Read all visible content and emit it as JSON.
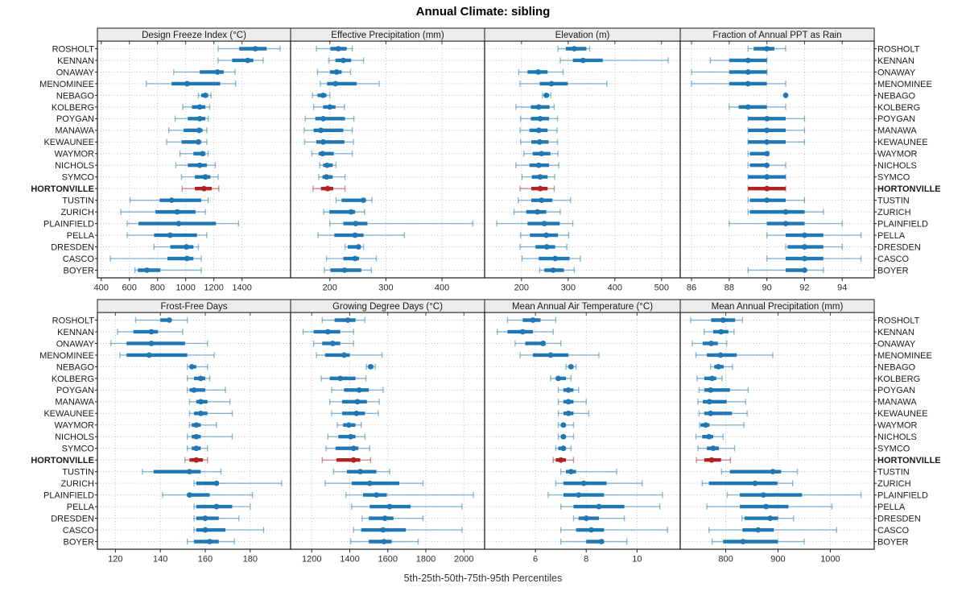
{
  "title": "Annual Climate: sibling",
  "caption": "5th-25th-50th-75th-95th Percentiles",
  "legend_note": "percentiles shown per site: 5th, 25th, 50th, 75th, 95th",
  "sites": [
    "ROSHOLT",
    "KENNAN",
    "ONAWAY",
    "MENOMINEE",
    "NEBAGO",
    "KOLBERG",
    "POYGAN",
    "MANAWA",
    "KEWAUNEE",
    "WAYMOR",
    "NICHOLS",
    "SYMCO",
    "HORTONVILLE",
    "TUSTIN",
    "ZURICH",
    "PLAINFIELD",
    "PELLA",
    "DRESDEN",
    "CASCO",
    "BOYER"
  ],
  "highlight_site": "HORTONVILLE",
  "colors": {
    "series": "#1f77b4",
    "series_light": "rgba(31,119,180,0.5)",
    "highlight": "#b22222",
    "highlight_light": "rgba(178,34,34,0.5)",
    "strip_bg": "#ececec",
    "grid": "#c3c3c3",
    "border": "#1a1a1a",
    "text": "#1a1a1a",
    "tick_text": "#2b2b2b"
  },
  "chart_data": [
    {
      "type": "dot-interval",
      "title": "Design Freeze Index (°C)",
      "xlim": [
        373,
        1745
      ],
      "ticks": [
        400,
        600,
        800,
        1000,
        1200,
        1400
      ],
      "values": {
        "ROSHOLT": [
          1230,
          1380,
          1495,
          1575,
          1670
        ],
        "KENNAN": [
          1230,
          1330,
          1440,
          1480,
          1550
        ],
        "ONAWAY": [
          915,
          1100,
          1225,
          1270,
          1350
        ],
        "MENOMINEE": [
          720,
          900,
          1010,
          1245,
          1355
        ],
        "NEBAGO": [
          1090,
          1110,
          1140,
          1160,
          1180
        ],
        "KOLBERG": [
          980,
          1045,
          1100,
          1140,
          1170
        ],
        "POYGAN": [
          925,
          1015,
          1100,
          1140,
          1160
        ],
        "MANAWA": [
          880,
          985,
          1095,
          1120,
          1150
        ],
        "KEWAUNEE": [
          865,
          970,
          1090,
          1110,
          1150
        ],
        "WAYMOR": [
          960,
          1055,
          1120,
          1140,
          1160
        ],
        "NICHOLS": [
          930,
          1015,
          1100,
          1150,
          1210
        ],
        "SYMCO": [
          970,
          1065,
          1140,
          1175,
          1230
        ],
        "HORTONVILLE": [
          975,
          1065,
          1130,
          1185,
          1235
        ],
        "TUSTIN": [
          605,
          815,
          900,
          1110,
          1160
        ],
        "ZURICH": [
          540,
          785,
          940,
          1070,
          1140
        ],
        "PLAINFIELD": [
          585,
          665,
          950,
          1215,
          1375
        ],
        "PELLA": [
          585,
          775,
          890,
          1080,
          1150
        ],
        "DRESDEN": [
          775,
          890,
          1005,
          1055,
          1090
        ],
        "CASCO": [
          465,
          870,
          1010,
          1055,
          1110
        ],
        "BOYER": [
          640,
          660,
          725,
          820,
          1110
        ]
      }
    },
    {
      "type": "dot-interval",
      "title": "Effective Precipitation (mm)",
      "xlim": [
        130,
        476
      ],
      "ticks": [
        200,
        300,
        400
      ],
      "values": {
        "ROSHOLT": [
          176,
          201,
          215,
          230,
          240
        ],
        "KENNAN": [
          198,
          210,
          224,
          238,
          260
        ],
        "ONAWAY": [
          178,
          200,
          212,
          221,
          237
        ],
        "MENOMINEE": [
          183,
          195,
          210,
          248,
          288
        ],
        "NEBAGO": [
          169,
          178,
          188,
          194,
          200
        ],
        "KOLBERG": [
          171,
          188,
          200,
          210,
          226
        ],
        "POYGAN": [
          156,
          174,
          188,
          227,
          243
        ],
        "MANAWA": [
          154,
          171,
          184,
          224,
          240
        ],
        "KEWAUNEE": [
          155,
          176,
          188,
          226,
          242
        ],
        "WAYMOR": [
          168,
          180,
          187,
          207,
          240
        ],
        "NICHOLS": [
          182,
          188,
          195,
          205,
          211
        ],
        "SYMCO": [
          180,
          187,
          194,
          205,
          227
        ],
        "HORTONVILLE": [
          170,
          184,
          196,
          206,
          227
        ],
        "TUSTIN": [
          211,
          221,
          260,
          264,
          275
        ],
        "ZURICH": [
          189,
          199,
          238,
          245,
          262
        ],
        "PLAINFIELD": [
          200,
          224,
          246,
          267,
          455
        ],
        "PELLA": [
          179,
          208,
          245,
          260,
          333
        ],
        "DRESDEN": [
          227,
          232,
          251,
          255,
          260
        ],
        "CASCO": [
          194,
          224,
          245,
          252,
          283
        ],
        "BOYER": [
          190,
          201,
          226,
          256,
          274
        ]
      }
    },
    {
      "type": "dot-interval",
      "title": "Elevation (m)",
      "xlim": [
        121,
        540
      ],
      "ticks": [
        200,
        300,
        400,
        500
      ],
      "values": {
        "ROSHOLT": [
          278,
          295,
          313,
          339,
          346
        ],
        "KENNAN": [
          283,
          310,
          332,
          374,
          514
        ],
        "ONAWAY": [
          194,
          213,
          236,
          256,
          289
        ],
        "MENOMINEE": [
          197,
          239,
          264,
          299,
          383
        ],
        "NEBAGO": [
          245,
          249,
          253,
          259,
          263
        ],
        "KOLBERG": [
          188,
          220,
          237,
          260,
          270
        ],
        "POYGAN": [
          198,
          220,
          240,
          259,
          277
        ],
        "MANAWA": [
          197,
          217,
          237,
          256,
          276
        ],
        "KEWAUNEE": [
          198,
          221,
          239,
          258,
          277
        ],
        "WAYMOR": [
          205,
          224,
          243,
          262,
          278
        ],
        "NICHOLS": [
          188,
          217,
          237,
          259,
          280
        ],
        "SYMCO": [
          201,
          222,
          240,
          256,
          271
        ],
        "HORTONVILLE": [
          197,
          221,
          240,
          256,
          270
        ],
        "TUSTIN": [
          193,
          221,
          243,
          266,
          305
        ],
        "ZURICH": [
          184,
          210,
          234,
          253,
          283
        ],
        "PLAINFIELD": [
          147,
          213,
          249,
          282,
          310
        ],
        "PELLA": [
          198,
          218,
          253,
          278,
          301
        ],
        "DRESDEN": [
          197,
          230,
          254,
          272,
          297
        ],
        "CASCO": [
          201,
          237,
          272,
          303,
          326
        ],
        "BOYER": [
          239,
          249,
          268,
          291,
          313
        ]
      }
    },
    {
      "type": "dot-interval",
      "title": "Fraction of Annual PPT as Rain",
      "xlim": [
        85.4,
        95.7
      ],
      "ticks": [
        86,
        88,
        90,
        92,
        94
      ],
      "values": {
        "ROSHOLT": [
          89,
          89.3,
          90,
          90.4,
          91
        ],
        "KENNAN": [
          87,
          88,
          89,
          90,
          90
        ],
        "ONAWAY": [
          86,
          88,
          89,
          90,
          90
        ],
        "MENOMINEE": [
          86,
          88,
          89,
          90,
          91
        ],
        "NEBAGO": [
          91,
          91,
          91,
          91,
          91
        ],
        "KOLBERG": [
          88,
          88.5,
          89,
          90,
          91
        ],
        "POYGAN": [
          89,
          89,
          90,
          91,
          92
        ],
        "MANAWA": [
          89,
          89,
          90,
          91,
          92
        ],
        "KEWAUNEE": [
          89,
          89,
          90,
          91,
          92
        ],
        "WAYMOR": [
          89,
          89.1,
          90,
          90,
          90.1
        ],
        "NICHOLS": [
          89,
          89.1,
          90,
          90,
          91
        ],
        "SYMCO": [
          89,
          89,
          90,
          91,
          91
        ],
        "HORTONVILLE": [
          89,
          89,
          90,
          91,
          91
        ],
        "TUSTIN": [
          89,
          89.1,
          90,
          91,
          92
        ],
        "ZURICH": [
          89,
          89.1,
          91,
          92,
          93
        ],
        "PLAINFIELD": [
          88,
          90,
          91,
          92,
          94
        ],
        "PELLA": [
          90,
          91,
          92,
          93,
          95
        ],
        "DRESDEN": [
          91,
          91.1,
          92,
          93,
          94
        ],
        "CASCO": [
          90,
          91,
          92,
          93,
          95
        ],
        "BOYER": [
          89,
          91,
          92,
          92.1,
          93
        ]
      }
    },
    {
      "type": "dot-interval",
      "title": "Frost-Free Days",
      "xlim": [
        112,
        198
      ],
      "ticks": [
        120,
        140,
        160,
        180
      ],
      "values": {
        "ROSHOLT": [
          129,
          140,
          144,
          145,
          152
        ],
        "KENNAN": [
          121,
          128,
          136,
          139,
          150
        ],
        "ONAWAY": [
          118,
          125,
          136,
          151,
          161
        ],
        "MENOMINEE": [
          122,
          125,
          135,
          152,
          164
        ],
        "NEBAGO": [
          152,
          153,
          154,
          156,
          161
        ],
        "KOLBERG": [
          152,
          155,
          158,
          160,
          162
        ],
        "POYGAN": [
          152,
          153,
          155,
          160,
          169
        ],
        "MANAWA": [
          153,
          156,
          158,
          161,
          171
        ],
        "KEWAUNEE": [
          153,
          155,
          158,
          161,
          172
        ],
        "WAYMOR": [
          153,
          154,
          156,
          158,
          165
        ],
        "NICHOLS": [
          152,
          154,
          156,
          158,
          172
        ],
        "SYMCO": [
          152,
          154,
          156,
          158,
          161
        ],
        "HORTONVILLE": [
          151,
          153,
          156,
          159,
          161
        ],
        "TUSTIN": [
          132,
          137,
          153,
          158,
          167
        ],
        "ZURICH": [
          155,
          156,
          165,
          166,
          194
        ],
        "PLAINFIELD": [
          141,
          152,
          153,
          162,
          181
        ],
        "PELLA": [
          155,
          156,
          165,
          172,
          180
        ],
        "DRESDEN": [
          155,
          156,
          160,
          166,
          175
        ],
        "CASCO": [
          155,
          156,
          160,
          169,
          186
        ],
        "BOYER": [
          152,
          155,
          162,
          166,
          173
        ]
      }
    },
    {
      "type": "dot-interval",
      "title": "Growing Degree Days (°C)",
      "xlim": [
        1089,
        2109
      ],
      "ticks": [
        1200,
        1400,
        1600,
        1800,
        2000
      ],
      "values": {
        "ROSHOLT": [
          1255,
          1320,
          1390,
          1430,
          1480
        ],
        "KENNAN": [
          1155,
          1210,
          1285,
          1350,
          1420
        ],
        "ONAWAY": [
          1210,
          1255,
          1310,
          1350,
          1420
        ],
        "MENOMINEE": [
          1225,
          1270,
          1370,
          1400,
          1570
        ],
        "NEBAGO": [
          1487,
          1496,
          1510,
          1524,
          1534
        ],
        "KOLBERG": [
          1250,
          1295,
          1350,
          1430,
          1485
        ],
        "POYGAN": [
          1305,
          1370,
          1450,
          1500,
          1575
        ],
        "MANAWA": [
          1295,
          1360,
          1440,
          1490,
          1555
        ],
        "KEWAUNEE": [
          1305,
          1360,
          1435,
          1480,
          1550
        ],
        "WAYMOR": [
          1335,
          1365,
          1395,
          1430,
          1460
        ],
        "NICHOLS": [
          1285,
          1340,
          1405,
          1430,
          1480
        ],
        "SYMCO": [
          1275,
          1325,
          1420,
          1445,
          1505
        ],
        "HORTONVILLE": [
          1255,
          1330,
          1420,
          1455,
          1510
        ],
        "TUSTIN": [
          1315,
          1385,
          1455,
          1540,
          1610
        ],
        "ZURICH": [
          1270,
          1410,
          1505,
          1660,
          1785
        ],
        "PLAINFIELD": [
          1380,
          1470,
          1540,
          1595,
          2050
        ],
        "PELLA": [
          1410,
          1505,
          1610,
          1720,
          1990
        ],
        "DRESDEN": [
          1465,
          1500,
          1585,
          1630,
          1785
        ],
        "CASCO": [
          1420,
          1460,
          1575,
          1695,
          1990
        ],
        "BOYER": [
          1405,
          1500,
          1580,
          1620,
          1760
        ]
      }
    },
    {
      "type": "dot-interval",
      "title": "Mean Annual Air Temperature (°C)",
      "xlim": [
        4.0,
        11.7
      ],
      "ticks": [
        6,
        8,
        10
      ],
      "values": {
        "ROSHOLT": [
          4.9,
          5.5,
          5.9,
          6.2,
          6.8
        ],
        "KENNAN": [
          4.5,
          4.9,
          5.5,
          5.9,
          6.7
        ],
        "ONAWAY": [
          5.2,
          5.6,
          6.3,
          6.4,
          7.0
        ],
        "MENOMINEE": [
          5.4,
          5.9,
          6.6,
          7.3,
          8.5
        ],
        "NEBAGO": [
          7.2,
          7.3,
          7.4,
          7.5,
          7.6
        ],
        "KOLBERG": [
          6.6,
          6.8,
          6.9,
          7.2,
          7.4
        ],
        "POYGAN": [
          6.9,
          7.1,
          7.3,
          7.5,
          7.7
        ],
        "MANAWA": [
          6.9,
          7.1,
          7.3,
          7.5,
          8.0
        ],
        "KEWAUNEE": [
          6.9,
          7.1,
          7.3,
          7.5,
          8.1
        ],
        "WAYMOR": [
          6.9,
          7.0,
          7.1,
          7.2,
          7.5
        ],
        "NICHOLS": [
          6.9,
          7.0,
          7.1,
          7.2,
          7.5
        ],
        "SYMCO": [
          6.8,
          6.9,
          7.1,
          7.2,
          7.4
        ],
        "HORTONVILLE": [
          6.7,
          6.8,
          7.0,
          7.2,
          7.5
        ],
        "TUSTIN": [
          7.0,
          7.2,
          7.4,
          7.6,
          9.2
        ],
        "ZURICH": [
          6.8,
          7.1,
          7.9,
          8.8,
          10.2
        ],
        "PLAINFIELD": [
          6.5,
          7.1,
          7.7,
          8.7,
          11.0
        ],
        "PELLA": [
          7.0,
          7.5,
          8.5,
          9.5,
          10.9
        ],
        "DRESDEN": [
          7.5,
          7.7,
          8.0,
          8.5,
          9.5
        ],
        "CASCO": [
          7.0,
          7.6,
          8.2,
          8.7,
          11.2
        ],
        "BOYER": [
          7.0,
          8.0,
          8.6,
          8.7,
          9.6
        ]
      }
    },
    {
      "type": "dot-interval",
      "title": "Mean Annual Precipitation (mm)",
      "xlim": [
        713,
        1084
      ],
      "ticks": [
        800,
        900,
        1000
      ],
      "values": {
        "ROSHOLT": [
          733,
          772,
          795,
          818,
          832
        ],
        "KENNAN": [
          759,
          776,
          791,
          805,
          816
        ],
        "ONAWAY": [
          736,
          756,
          772,
          785,
          802
        ],
        "MENOMINEE": [
          743,
          764,
          790,
          821,
          890
        ],
        "NEBAGO": [
          771,
          778,
          786,
          796,
          813
        ],
        "KOLBERG": [
          745,
          759,
          774,
          782,
          793
        ],
        "POYGAN": [
          749,
          759,
          771,
          808,
          843
        ],
        "MANAWA": [
          747,
          756,
          769,
          802,
          838
        ],
        "KEWAUNEE": [
          749,
          759,
          771,
          812,
          841
        ],
        "WAYMOR": [
          750,
          752,
          762,
          769,
          835
        ],
        "NICHOLS": [
          743,
          755,
          768,
          776,
          795
        ],
        "SYMCO": [
          747,
          764,
          776,
          787,
          817
        ],
        "HORTONVILLE": [
          744,
          759,
          773,
          791,
          809
        ],
        "TUSTIN": [
          792,
          808,
          890,
          906,
          937
        ],
        "ZURICH": [
          755,
          768,
          856,
          899,
          928
        ],
        "PLAINFIELD": [
          803,
          827,
          872,
          946,
          1059
        ],
        "PELLA": [
          764,
          827,
          877,
          920,
          1003
        ],
        "DRESDEN": [
          831,
          836,
          885,
          900,
          930
        ],
        "CASCO": [
          768,
          832,
          862,
          892,
          1012
        ],
        "BOYER": [
          774,
          795,
          833,
          900,
          950
        ]
      }
    }
  ]
}
